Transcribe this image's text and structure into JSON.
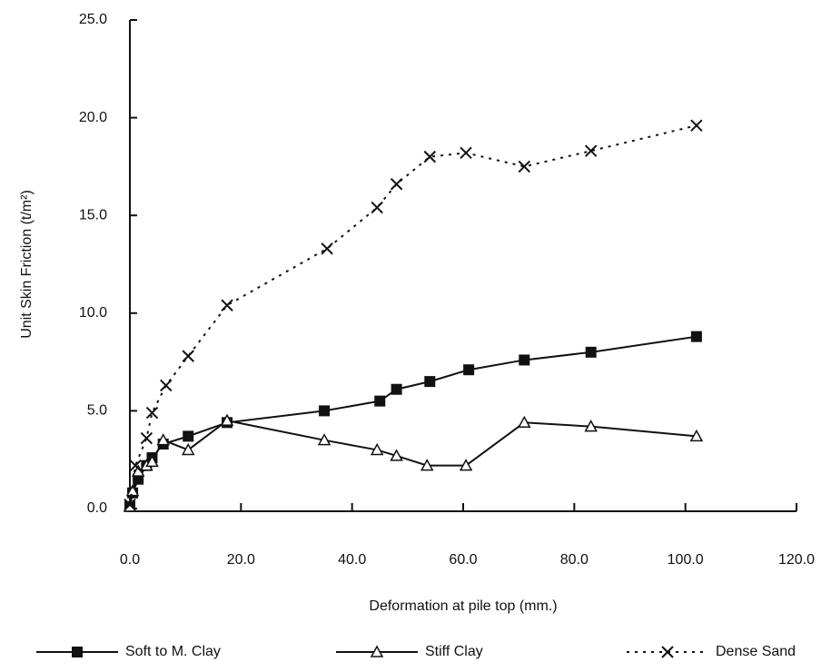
{
  "chart_data": {
    "type": "line",
    "x_label": "Deformation at pile top (mm.)",
    "y_label": "Unit Skin Friction (t/m²)",
    "xlim": [
      0,
      120
    ],
    "ylim": [
      0,
      25
    ],
    "xticks": [
      {
        "value": 0,
        "label": "0.0"
      },
      {
        "value": 20,
        "label": "20.0"
      },
      {
        "value": 40,
        "label": "40.0"
      },
      {
        "value": 60,
        "label": "60.0"
      },
      {
        "value": 80,
        "label": "80.0"
      },
      {
        "value": 100,
        "label": "100.0"
      },
      {
        "value": 120,
        "label": "120.0"
      }
    ],
    "yticks": [
      {
        "value": 0,
        "label": "0.0"
      },
      {
        "value": 5,
        "label": "5.0"
      },
      {
        "value": 10,
        "label": "10.0"
      },
      {
        "value": 15,
        "label": "15.0"
      },
      {
        "value": 20,
        "label": "20.0"
      },
      {
        "value": 25,
        "label": "25.0"
      }
    ],
    "grid": false,
    "legend": "bottom",
    "series": [
      {
        "name": "Soft to M. Clay",
        "color": "#111111",
        "marker": "square",
        "dash": "solid",
        "x": [
          0,
          0.5,
          1.5,
          3,
          4,
          6,
          10.5,
          17.5,
          35,
          45,
          48,
          54,
          61,
          71,
          83,
          102
        ],
        "values": [
          0.1,
          0.8,
          1.5,
          2.2,
          2.6,
          3.3,
          3.7,
          4.4,
          5.0,
          5.5,
          6.1,
          6.5,
          7.1,
          7.6,
          8.0,
          8.8
        ]
      },
      {
        "name": "Stiff Clay",
        "color": "#111111",
        "marker": "triangle",
        "dash": "solid",
        "x": [
          0,
          0.5,
          1.5,
          3,
          4,
          6,
          10.5,
          17.5,
          35,
          44.5,
          48,
          53.5,
          60.5,
          71,
          83,
          102
        ],
        "values": [
          0.1,
          0.9,
          1.9,
          2.2,
          2.4,
          3.5,
          3.0,
          4.5,
          3.5,
          3.0,
          2.7,
          2.2,
          2.2,
          4.4,
          4.2,
          3.7
        ]
      },
      {
        "name": "Dense Sand",
        "color": "#111111",
        "marker": "x",
        "dash": "dotted",
        "x": [
          0,
          1,
          3,
          4,
          6.5,
          10.5,
          17.5,
          35.5,
          44.5,
          48,
          54,
          60.5,
          71,
          83,
          102
        ],
        "values": [
          0.2,
          2.2,
          3.6,
          4.9,
          6.3,
          7.8,
          10.4,
          13.3,
          15.4,
          16.6,
          18.0,
          18.2,
          17.5,
          18.3,
          19.6
        ]
      }
    ]
  }
}
